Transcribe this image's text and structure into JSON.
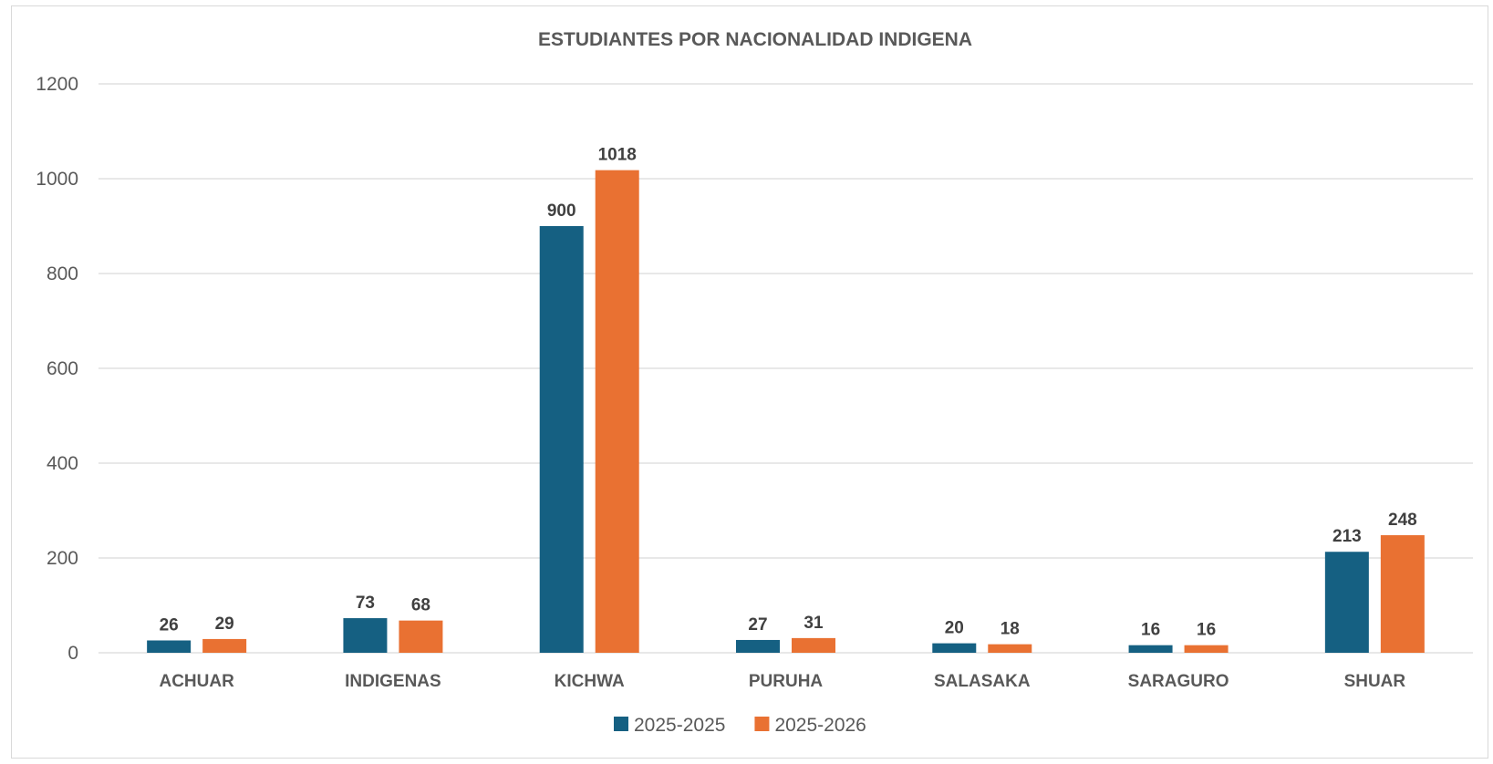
{
  "chart_data": {
    "type": "bar",
    "title": "ESTUDIANTES POR NACIONALIDAD INDIGENA",
    "xlabel": "",
    "ylabel": "",
    "categories": [
      "ACHUAR",
      "INDIGENAS",
      "KICHWA",
      "PURUHA",
      "SALASAKA",
      "SARAGURO",
      "SHUAR"
    ],
    "series": [
      {
        "name": "2025-2025",
        "color": "#156082",
        "values": [
          26,
          73,
          900,
          27,
          20,
          16,
          213
        ]
      },
      {
        "name": "2025-2026",
        "color": "#E97132",
        "values": [
          29,
          68,
          1018,
          31,
          18,
          16,
          248
        ]
      }
    ],
    "ylim": [
      0,
      1200
    ],
    "yticks": [
      0,
      200,
      400,
      600,
      800,
      1000,
      1200
    ],
    "grid": true,
    "legend_position": "bottom",
    "data_labels": true
  }
}
